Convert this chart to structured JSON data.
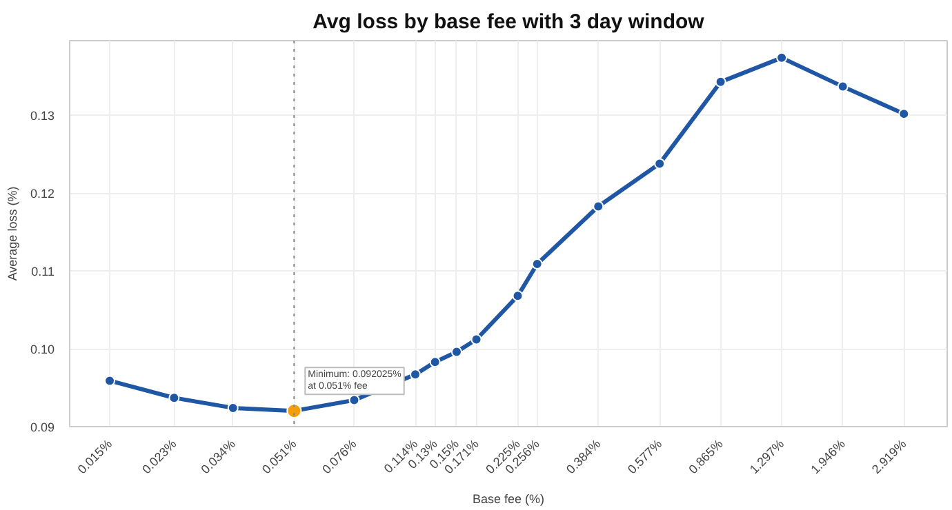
{
  "chart_data": {
    "type": "line",
    "title": "Avg loss by base fee with 3 day window",
    "xlabel": "Base fee (%)",
    "ylabel": "Average loss (%)",
    "log": "x",
    "grid": true,
    "marker": "circle",
    "line_style": "solid",
    "xlim": [
      0.0115,
      3.89
    ],
    "ylim": [
      0.09,
      0.1396
    ],
    "xticks": [
      {
        "value": 0.015,
        "label": "0.015%"
      },
      {
        "value": 0.023,
        "label": "0.023%"
      },
      {
        "value": 0.034,
        "label": "0.034%"
      },
      {
        "value": 0.051,
        "label": "0.051%"
      },
      {
        "value": 0.076,
        "label": "0.076%"
      },
      {
        "value": 0.114,
        "label": "0.114%"
      },
      {
        "value": 0.13,
        "label": "0.13%"
      },
      {
        "value": 0.15,
        "label": "0.15%"
      },
      {
        "value": 0.171,
        "label": "0.171%"
      },
      {
        "value": 0.225,
        "label": "0.225%"
      },
      {
        "value": 0.256,
        "label": "0.256%"
      },
      {
        "value": 0.384,
        "label": "0.384%"
      },
      {
        "value": 0.577,
        "label": "0.577%"
      },
      {
        "value": 0.865,
        "label": "0.865%"
      },
      {
        "value": 1.297,
        "label": "1.297%"
      },
      {
        "value": 1.946,
        "label": "1.946%"
      },
      {
        "value": 2.919,
        "label": "2.919%"
      }
    ],
    "yticks": [
      {
        "value": 0.09,
        "label": "0.09"
      },
      {
        "value": 0.1,
        "label": "0.10"
      },
      {
        "value": 0.11,
        "label": "0.11"
      },
      {
        "value": 0.12,
        "label": "0.12"
      },
      {
        "value": 0.13,
        "label": "0.13"
      }
    ],
    "series": [
      {
        "color": "#1f57a4",
        "x": [
          0.015,
          0.023,
          0.034,
          0.051,
          0.076,
          0.114,
          0.13,
          0.15,
          0.171,
          0.225,
          0.256,
          0.384,
          0.577,
          0.865,
          1.297,
          1.946,
          2.919
        ],
        "values": [
          0.0959,
          0.0937,
          0.0924,
          0.092025,
          0.0934,
          0.0967,
          0.0983,
          0.0996,
          0.1012,
          0.1068,
          0.1109,
          0.1183,
          0.1238,
          0.1343,
          0.1374,
          0.1337,
          0.1302
        ]
      },
      {
        "type": "scatter",
        "color": "#f59e0b",
        "x": [
          0.051
        ],
        "values": [
          0.092025
        ]
      }
    ],
    "ref_lines": [
      {
        "axis": "x",
        "value": 0.051,
        "color": "#888888",
        "line_style": "dotted"
      }
    ],
    "annotations": [
      {
        "text": "Minimum: 0.092025%\nat 0.051% fee",
        "x": 0.051,
        "y": 0.092025
      }
    ]
  }
}
